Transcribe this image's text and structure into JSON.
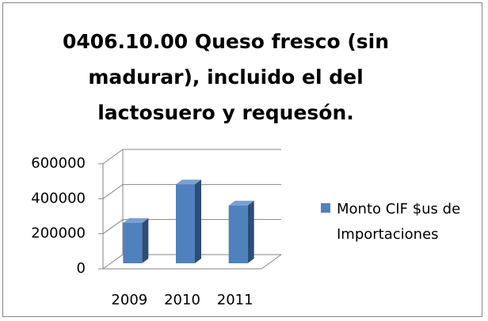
{
  "chart_data": {
    "type": "bar3d",
    "title": "0406.10.00 Queso fresco (sin madurar), incluido el del lactosuero y requesón.",
    "categories": [
      "2009",
      "2010",
      "2011"
    ],
    "series": [
      {
        "name": "Monto CIF $us de Importaciones",
        "color": "#4f81bd",
        "values": [
          230000,
          450000,
          330000
        ]
      }
    ],
    "ylim": [
      0,
      600000
    ],
    "yticks": [
      0,
      200000,
      400000,
      600000
    ],
    "grid": true,
    "legend": "right"
  }
}
